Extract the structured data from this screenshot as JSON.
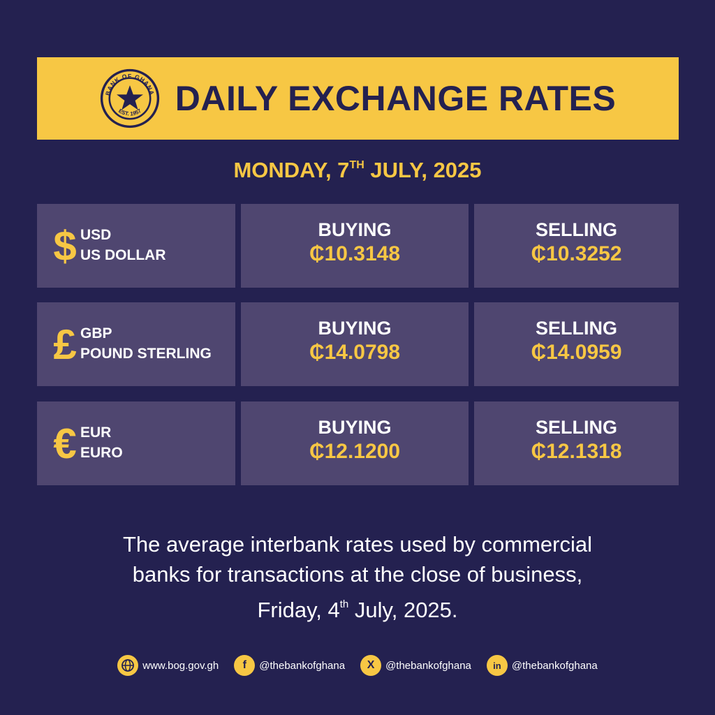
{
  "banner": {
    "title": "DAILY EXCHANGE RATES",
    "seal_text_top": "BANK OF GHANA",
    "seal_text_bottom": "EST. 1957"
  },
  "date": {
    "prefix": "MONDAY, 7",
    "suffix": "TH",
    "rest": " JULY, 2025"
  },
  "rates": [
    {
      "symbol": "$",
      "code": "USD",
      "name": "US DOLLAR",
      "buying_label": "BUYING",
      "buying": "₵10.3148",
      "selling_label": "SELLING",
      "selling": "₵10.3252"
    },
    {
      "symbol": "£",
      "code": "GBP",
      "name": "POUND STERLING",
      "buying_label": "BUYING",
      "buying": "₵14.0798",
      "selling_label": "SELLING",
      "selling": "₵14.0959"
    },
    {
      "symbol": "€",
      "code": "EUR",
      "name": "EURO",
      "buying_label": "BUYING",
      "buying": "₵12.1200",
      "selling_label": "SELLING",
      "selling": "₵12.1318"
    }
  ],
  "note": {
    "line1": "The average interbank rates used by commercial",
    "line2": "banks for transactions at the close of business,",
    "line3_prefix": "Friday, 4",
    "line3_sup": "th",
    "line3_rest": " July, 2025."
  },
  "footer": {
    "website": "www.bog.gov.gh",
    "facebook": "@thebankofghana",
    "x": "@thebankofghana",
    "linkedin": "@thebankofghana"
  },
  "colors": {
    "background": "#242150",
    "accent": "#f7c744",
    "cell": "#4f4670"
  },
  "icons": [
    "bank-seal-icon",
    "dollar-icon",
    "pound-icon",
    "euro-icon",
    "globe-icon",
    "facebook-icon",
    "x-icon",
    "linkedin-icon"
  ]
}
